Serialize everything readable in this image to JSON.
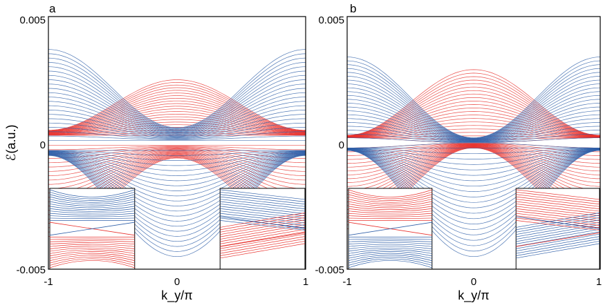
{
  "chart_data": [
    {
      "type": "line",
      "panel_label": "a",
      "xlabel": "k_y/π",
      "ylabel": "ℰ(a.u.)",
      "xlim": [
        -1,
        1
      ],
      "ylim": [
        -0.005,
        0.005
      ],
      "x_ticks": [
        "-1",
        "0",
        "1"
      ],
      "y_ticks": [
        "0.005",
        "0",
        "-0.005"
      ],
      "colors": {
        "blue": "#2f5fa8",
        "red": "#e8302c"
      },
      "series": [
        {
          "color": "red",
          "band": "upper",
          "outer_at_edge": 0.0005,
          "outer_at_center": 0.0025,
          "inner_at_edge": 0.0003,
          "inner_at_center": 0.0003
        },
        {
          "color": "blue",
          "band": "upper",
          "outer_at_edge": 0.0037,
          "outer_at_center": 0.0006,
          "inner_at_edge": 0.0001,
          "inner_at_center": 0.0001
        },
        {
          "color": "red",
          "band": "lower",
          "outer_at_edge": -0.0037,
          "outer_at_center": -0.0006,
          "inner_at_edge": -0.0001,
          "inner_at_center": -0.0001
        },
        {
          "color": "blue",
          "band": "lower",
          "outer_at_edge": -0.0005,
          "outer_at_center": -0.0045,
          "inner_at_edge": -0.0003,
          "inner_at_center": -0.0003
        }
      ],
      "insets": [
        {
          "position": "bottom-left",
          "content": "crossing edge states near k_y = 0 between blue upper continuum and red lower continuum"
        },
        {
          "position": "bottom-right",
          "content": "zoom near k_y = 1 showing blue bands above and red bands below separated by edge states"
        }
      ]
    },
    {
      "type": "line",
      "panel_label": "b",
      "xlabel": "k_y/π",
      "ylabel": "",
      "xlim": [
        -1,
        1
      ],
      "ylim": [
        -0.005,
        0.005
      ],
      "x_ticks": [
        "-1",
        "0",
        "1"
      ],
      "y_ticks": [
        "0.005",
        "0",
        "-0.005"
      ],
      "colors": {
        "blue": "#2f5fa8",
        "red": "#e8302c"
      },
      "series": [
        {
          "color": "red",
          "band": "upper",
          "outer_at_edge": 0.0003,
          "outer_at_center": 0.0029,
          "inner_at_edge": 0.0002,
          "inner_at_center": 0.0
        },
        {
          "color": "blue",
          "band": "upper",
          "outer_at_edge": 0.0034,
          "outer_at_center": 0.0002,
          "inner_at_edge": 0.0002,
          "inner_at_center": 0.0
        },
        {
          "color": "red",
          "band": "lower",
          "outer_at_edge": -0.0034,
          "outer_at_center": -0.0002,
          "inner_at_edge": -0.0002,
          "inner_at_center": 0.0
        },
        {
          "color": "blue",
          "band": "lower",
          "outer_at_edge": -0.0003,
          "outer_at_center": -0.0045,
          "inner_at_edge": -0.0002,
          "inner_at_center": 0.0
        }
      ],
      "insets": [
        {
          "position": "bottom-left",
          "content": "crossing near k_y = 0 with red bands above and blue bands below meeting at a point"
        },
        {
          "position": "bottom-right",
          "content": "zoom near k_y = 1 showing red and blue bands with crossing edge lines"
        }
      ]
    }
  ]
}
